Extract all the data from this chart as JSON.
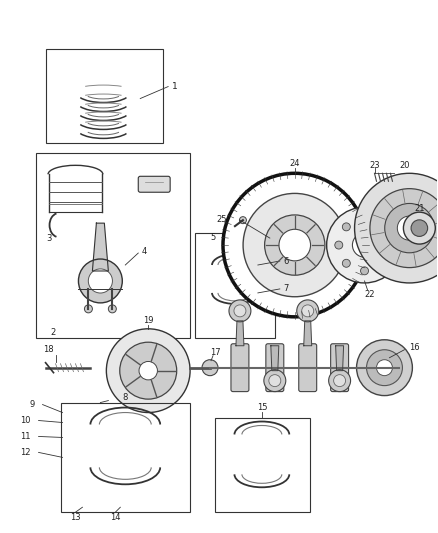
{
  "background_color": "#ffffff",
  "fig_width": 4.38,
  "fig_height": 5.33,
  "dpi": 100,
  "line_color": "#333333",
  "label_color": "#222222",
  "label_fs": 6.5
}
